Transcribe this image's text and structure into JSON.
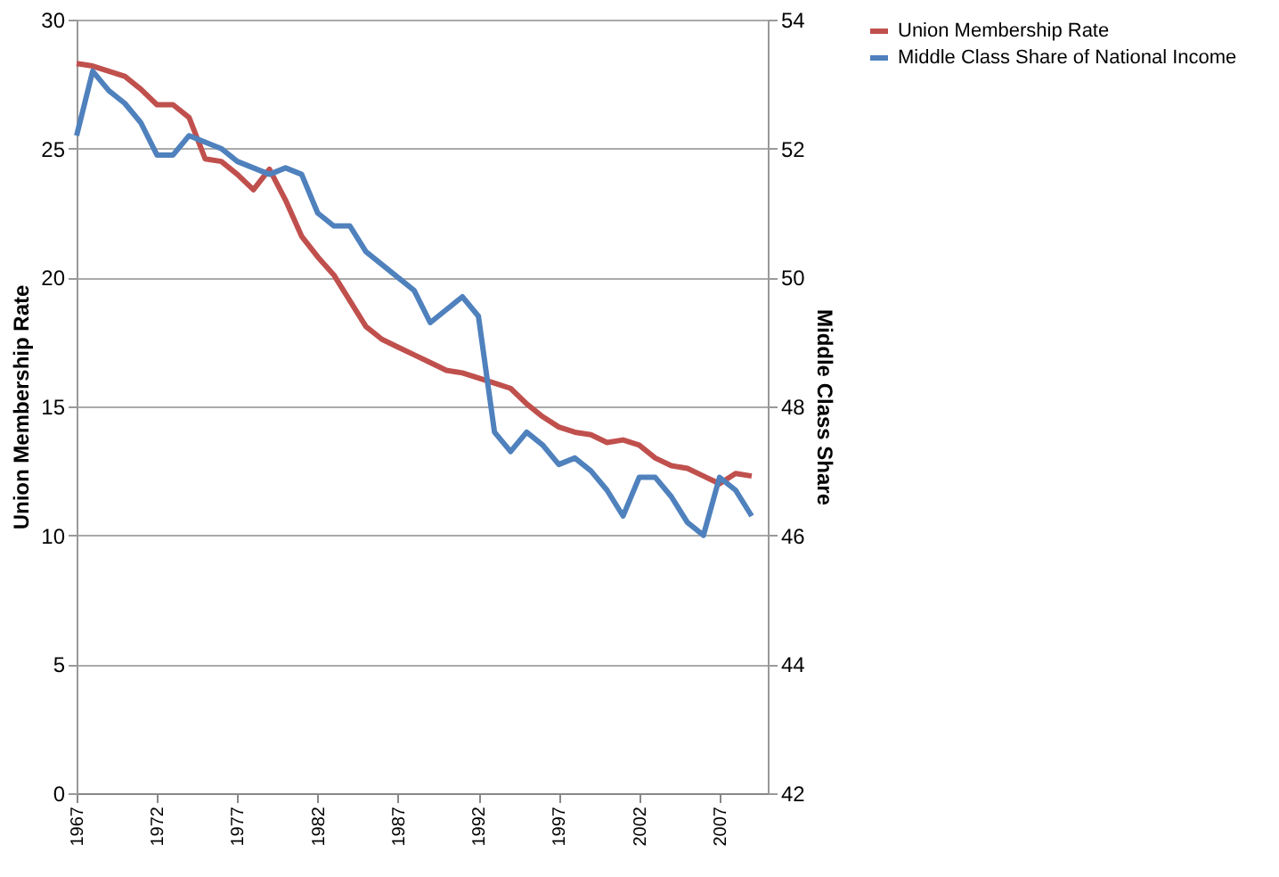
{
  "chart_data": {
    "type": "line",
    "ylabel": "Union Membership Rate",
    "y2label": "Middle Class Share",
    "x": [
      1967,
      1968,
      1969,
      1970,
      1971,
      1972,
      1973,
      1974,
      1975,
      1976,
      1977,
      1978,
      1979,
      1980,
      1981,
      1982,
      1983,
      1984,
      1985,
      1986,
      1987,
      1988,
      1989,
      1990,
      1991,
      1992,
      1993,
      1994,
      1995,
      1996,
      1997,
      1998,
      1999,
      2000,
      2001,
      2002,
      2003,
      2004,
      2005,
      2006,
      2007,
      2008,
      2009
    ],
    "series": [
      {
        "name": "Union Membership Rate",
        "color": "#c0504d",
        "values": [
          28.3,
          28.2,
          28.0,
          27.8,
          27.3,
          26.7,
          26.7,
          26.2,
          24.6,
          24.5,
          24.0,
          23.4,
          24.2,
          23.0,
          21.6,
          20.8,
          20.1,
          19.1,
          18.1,
          17.6,
          17.3,
          17.0,
          16.7,
          16.4,
          16.3,
          16.1,
          15.9,
          15.7,
          15.1,
          14.6,
          14.2,
          14.0,
          13.9,
          13.6,
          13.7,
          13.5,
          13.0,
          12.7,
          12.6,
          12.3,
          12.0,
          12.4,
          12.3
        ]
      },
      {
        "name": "Middle Class Share of National Income",
        "color": "#4f81bd",
        "axis": "y2",
        "values": [
          52.2,
          53.2,
          52.9,
          52.7,
          52.4,
          51.9,
          51.9,
          52.2,
          52.1,
          52.0,
          51.8,
          51.7,
          51.6,
          51.7,
          51.6,
          51.0,
          50.8,
          50.8,
          50.4,
          50.2,
          50.0,
          49.8,
          49.3,
          49.5,
          49.7,
          49.4,
          47.6,
          47.3,
          47.6,
          47.4,
          47.1,
          47.2,
          47.0,
          46.7,
          46.3,
          46.9,
          46.9,
          46.6,
          46.2,
          46.0,
          46.9,
          46.7,
          46.3
        ]
      }
    ],
    "xlim": [
      1967,
      2010
    ],
    "xticks": [
      1967,
      1972,
      1977,
      1982,
      1987,
      1992,
      1997,
      2002,
      2007
    ],
    "ylim": [
      0,
      30
    ],
    "yticks": [
      0,
      5,
      10,
      15,
      20,
      25,
      30
    ],
    "y2lim": [
      42,
      54
    ],
    "y2ticks": [
      42,
      44,
      46,
      48,
      50,
      52,
      54
    ],
    "grid": "y",
    "legend": "right",
    "marker": "none",
    "line_style": "solid"
  }
}
